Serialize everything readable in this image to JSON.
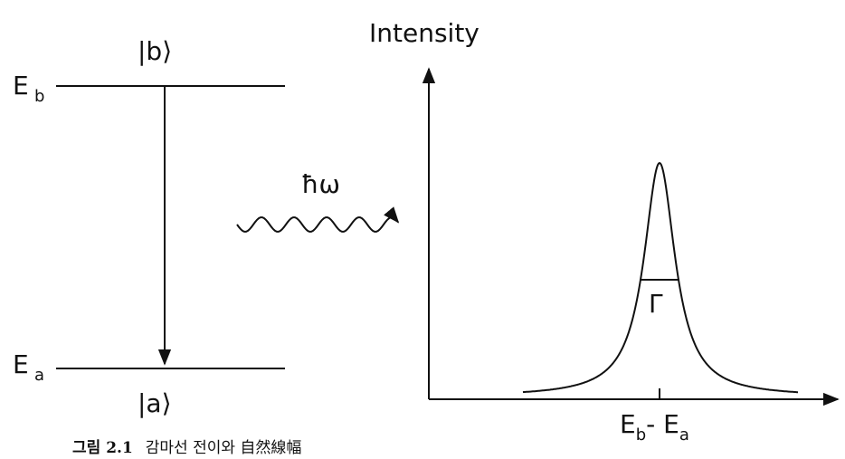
{
  "levels": {
    "upper": {
      "state": "|b⟩",
      "symbol": "E",
      "subscript": "b"
    },
    "lower": {
      "state": "|a⟩",
      "symbol": "E",
      "subscript": "a"
    }
  },
  "photon": "ħω",
  "spectrum": {
    "axis_label": "Intensity",
    "width_label": "Γ",
    "peak_label": {
      "symbol_1": "E",
      "subscript_1": "b",
      "minus": "- E",
      "subscript_2": "a"
    }
  },
  "caption": {
    "number": "그림 2.1",
    "text": "감마선 전이와 自然線幅"
  }
}
